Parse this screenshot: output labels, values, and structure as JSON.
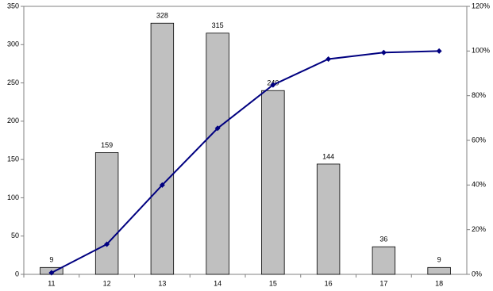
{
  "chart_data": {
    "type": "bar",
    "categories": [
      "11",
      "12",
      "13",
      "14",
      "15",
      "16",
      "17",
      "18"
    ],
    "series": [
      {
        "type": "bar",
        "color": "#c0c0c0",
        "values": [
          9,
          159,
          328,
          315,
          240,
          144,
          36,
          9
        ]
      },
      {
        "type": "line",
        "axis": "y2",
        "color": "#000080",
        "values": [
          0.7,
          13.5,
          40,
          65.4,
          84.8,
          96.4,
          99.3,
          100
        ]
      }
    ],
    "ylim": [
      0,
      350
    ],
    "yticks": [
      0,
      50,
      100,
      150,
      200,
      250,
      300,
      350
    ],
    "y2lim": [
      0,
      120
    ],
    "y2ticks": [
      {
        "value": 0,
        "label": "0%"
      },
      {
        "value": 20,
        "label": "20%"
      },
      {
        "value": 40,
        "label": "40%"
      },
      {
        "value": 60,
        "label": "60%"
      },
      {
        "value": 80,
        "label": "80%"
      },
      {
        "value": 100,
        "label": "100%"
      },
      {
        "value": 120,
        "label": "120%"
      }
    ]
  }
}
